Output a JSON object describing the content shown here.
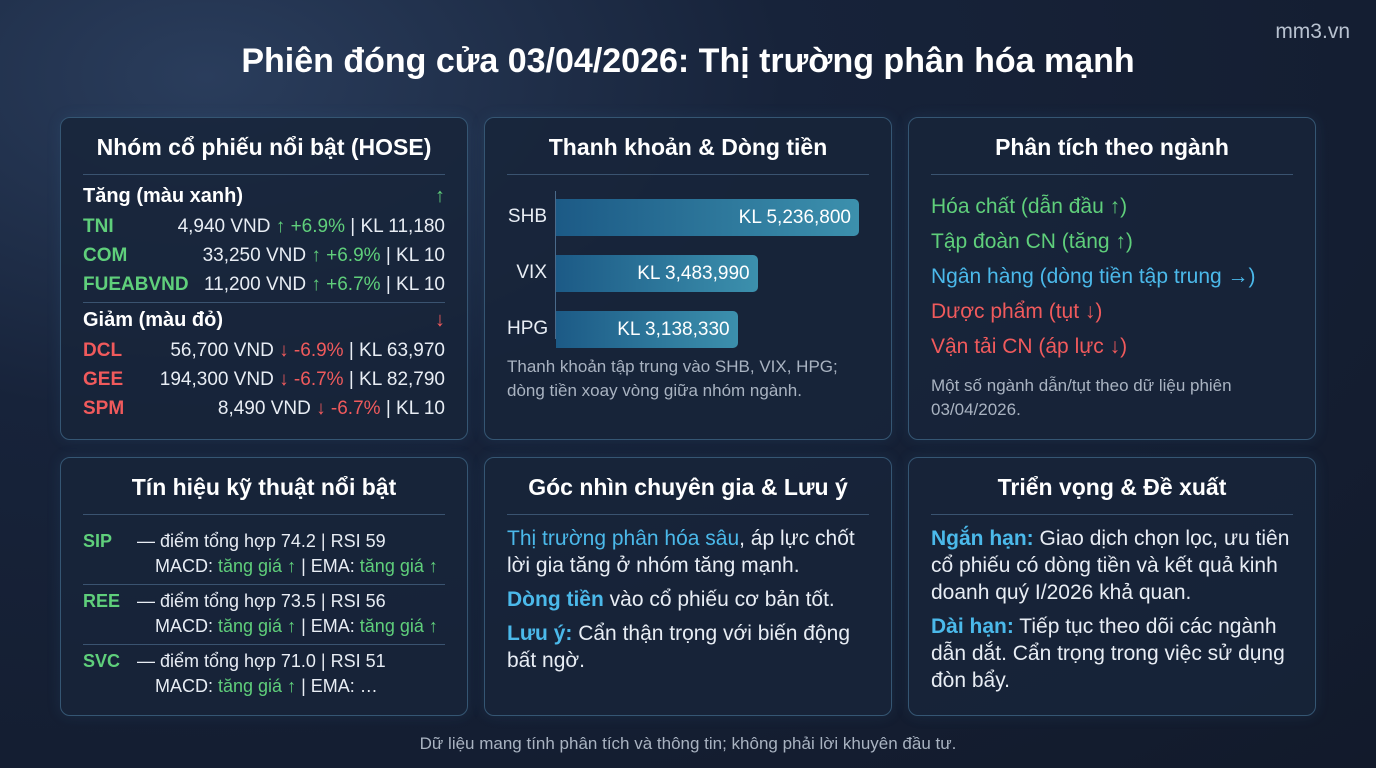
{
  "watermark": "mm3.vn",
  "title": "Phiên đóng cửa 03/04/2026: Thị trường phân hóa mạnh",
  "colors": {
    "up": "#5fcf7b",
    "down": "#f05a5c",
    "accent": "#4bb9ea",
    "background": "#141d2e"
  },
  "stocks": {
    "title": "Nhóm cổ phiếu nổi bật (HOSE)",
    "up_label": "Tăng (màu xanh)",
    "up_icon": "↑",
    "up": [
      {
        "ticker": "TNI",
        "price": "4,940 VND",
        "change": "↑ +6.9%",
        "vol": "| KL 11,180"
      },
      {
        "ticker": "COM",
        "price": "33,250 VND",
        "change": "↑ +6.9%",
        "vol": "| KL 10"
      },
      {
        "ticker": "FUEABVND",
        "price": "11,200 VND",
        "change": "↑ +6.7%",
        "vol": "| KL 10"
      }
    ],
    "down_label": "Giảm (màu đỏ)",
    "down_icon": "↓",
    "down": [
      {
        "ticker": "DCL",
        "price": "56,700 VND",
        "change": "↓ -6.9%",
        "vol": "| KL 63,970"
      },
      {
        "ticker": "GEE",
        "price": "194,300 VND",
        "change": "↓ -6.7%",
        "vol": "| KL 82,790"
      },
      {
        "ticker": "SPM",
        "price": "8,490 VND",
        "change": "↓ -6.7%",
        "vol": "| KL 10"
      }
    ]
  },
  "liquidity": {
    "title": "Thanh khoản & Dòng tiền",
    "note": "Thanh khoản tập trung vào SHB, VIX, HPG; dòng tiền xoay vòng giữa nhóm ngành."
  },
  "chart_data": {
    "type": "bar",
    "orientation": "horizontal",
    "categories": [
      "SHB",
      "VIX",
      "HPG"
    ],
    "values": [
      5236800,
      3483990,
      3138330
    ],
    "data_labels": [
      "KL 5,236,800",
      "KL 3,483,990",
      "KL 3,138,330"
    ],
    "xlim": [
      0,
      5236800
    ],
    "grid": false
  },
  "sectors": {
    "title": "Phân tích theo ngành",
    "items": [
      "Hóa chất (dẫn đầu ↑)",
      "Tập đoàn CN (tăng ↑)",
      "Ngân hàng (dòng tiền tập trung →)",
      "Dược phẩm (tụt ↓)",
      "Vận tải CN (áp lực ↓)"
    ],
    "note": "Một số ngành dẫn/tụt theo dữ liệu phiên 03/04/2026."
  },
  "technical": {
    "title": "Tín hiệu kỹ thuật nổi bật",
    "macd": "MACD:",
    "ema": "| EMA:",
    "up": "tăng giá ↑",
    "items": [
      {
        "ticker": "SIP",
        "line": "— điểm tổng hợp 74.2 | RSI 59",
        "ema_val": "tăng giá ↑"
      },
      {
        "ticker": "REE",
        "line": "— điểm tổng hợp 73.5 | RSI 56",
        "ema_val": "tăng giá ↑"
      },
      {
        "ticker": "SVC",
        "line": "— điểm tổng hợp 71.0 | RSI 51",
        "ema_val": "…"
      }
    ]
  },
  "expert": {
    "title": "Góc nhìn chuyên gia & Lưu ý",
    "p1_hl": "Thị trường phân hóa sâu",
    "p1": ", áp lực chốt lời gia tăng ở nhóm tăng mạnh.",
    "p2_hl": "Dòng tiền",
    "p2": " vào cổ phiếu cơ bản tốt.",
    "p3_hl": "Lưu ý:",
    "p3": " Cẩn thận trọng với biến động bất ngờ."
  },
  "outlook": {
    "title": "Triển vọng & Đề xuất",
    "p1_hl": "Ngắn hạn:",
    "p1": " Giao dịch chọn lọc, ưu tiên cổ phiếu có dòng tiền và kết quả kinh doanh quý I/2026 khả quan.",
    "p2_hl": "Dài hạn:",
    "p2": " Tiếp tục theo dõi các ngành dẫn dắt. Cẩn trọng trong việc sử dụng đòn bẩy."
  },
  "footer": "Dữ liệu mang tính phân tích và thông tin; không phải lời khuyên đầu tư."
}
